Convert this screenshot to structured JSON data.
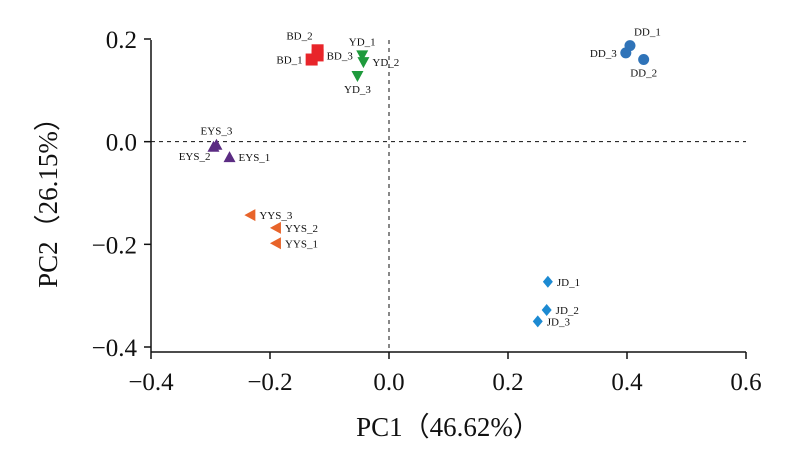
{
  "chart_data": {
    "type": "scatter",
    "xlabel": "PC1（46.62%）",
    "ylabel": "PC2（26.15%）",
    "xlim": [
      -0.4,
      0.6
    ],
    "ylim": [
      -0.4,
      0.2
    ],
    "x_ticks": [
      {
        "value": -0.4,
        "label": "−0.4"
      },
      {
        "value": -0.2,
        "label": "−0.2"
      },
      {
        "value": 0.0,
        "label": "0.0"
      },
      {
        "value": 0.2,
        "label": "0.2"
      },
      {
        "value": 0.4,
        "label": "0.4"
      },
      {
        "value": 0.6,
        "label": "0.6"
      }
    ],
    "y_ticks": [
      {
        "value": 0.2,
        "label": "0.2"
      },
      {
        "value": 0.0,
        "label": "0.0"
      },
      {
        "value": -0.2,
        "label": "−0.2"
      },
      {
        "value": -0.4,
        "label": "−0.4"
      }
    ],
    "reference_lines": {
      "x": 0,
      "y": 0,
      "style": "dashed"
    },
    "grid": false,
    "series": [
      {
        "group": "BD",
        "marker": "square",
        "color": "#e8252a",
        "points": [
          {
            "label": "BD_1",
            "x": -0.13,
            "y": 0.16,
            "label_side": "left"
          },
          {
            "label": "BD_2",
            "x": -0.12,
            "y": 0.178,
            "label_side": "left-above"
          },
          {
            "label": "BD_3",
            "x": -0.12,
            "y": 0.168,
            "label_side": "right"
          }
        ]
      },
      {
        "group": "YD",
        "marker": "triangle-down",
        "color": "#1e9a3c",
        "points": [
          {
            "label": "YD_1",
            "x": -0.045,
            "y": 0.168,
            "label_side": "above"
          },
          {
            "label": "YD_2",
            "x": -0.043,
            "y": 0.155,
            "label_side": "right"
          },
          {
            "label": "YD_3",
            "x": -0.053,
            "y": 0.128,
            "label_side": "below"
          }
        ]
      },
      {
        "group": "DD",
        "marker": "circle",
        "color": "#2f73b8",
        "points": [
          {
            "label": "DD_1",
            "x": 0.405,
            "y": 0.187,
            "label_side": "right-above"
          },
          {
            "label": "DD_2",
            "x": 0.428,
            "y": 0.16,
            "label_side": "below"
          },
          {
            "label": "DD_3",
            "x": 0.398,
            "y": 0.173,
            "label_side": "left"
          }
        ]
      },
      {
        "group": "EYS",
        "marker": "triangle-up",
        "color": "#5b2c83",
        "points": [
          {
            "label": "EYS_1",
            "x": -0.268,
            "y": -0.03,
            "label_side": "right"
          },
          {
            "label": "EYS_2",
            "x": -0.295,
            "y": -0.01,
            "label_side": "left-below"
          },
          {
            "label": "EYS_3",
            "x": -0.29,
            "y": -0.006,
            "label_side": "above"
          }
        ]
      },
      {
        "group": "YYS",
        "marker": "triangle-left",
        "color": "#e8642a",
        "points": [
          {
            "label": "YYS_1",
            "x": -0.19,
            "y": -0.198,
            "label_side": "right"
          },
          {
            "label": "YYS_2",
            "x": -0.19,
            "y": -0.168,
            "label_side": "right"
          },
          {
            "label": "YYS_3",
            "x": -0.233,
            "y": -0.143,
            "label_side": "right"
          }
        ]
      },
      {
        "group": "JD",
        "marker": "diamond",
        "color": "#1c8ad2",
        "points": [
          {
            "label": "JD_1",
            "x": 0.267,
            "y": -0.273,
            "label_side": "right"
          },
          {
            "label": "JD_2",
            "x": 0.265,
            "y": -0.328,
            "label_side": "right"
          },
          {
            "label": "JD_3",
            "x": 0.25,
            "y": -0.35,
            "label_side": "right"
          }
        ]
      }
    ]
  }
}
